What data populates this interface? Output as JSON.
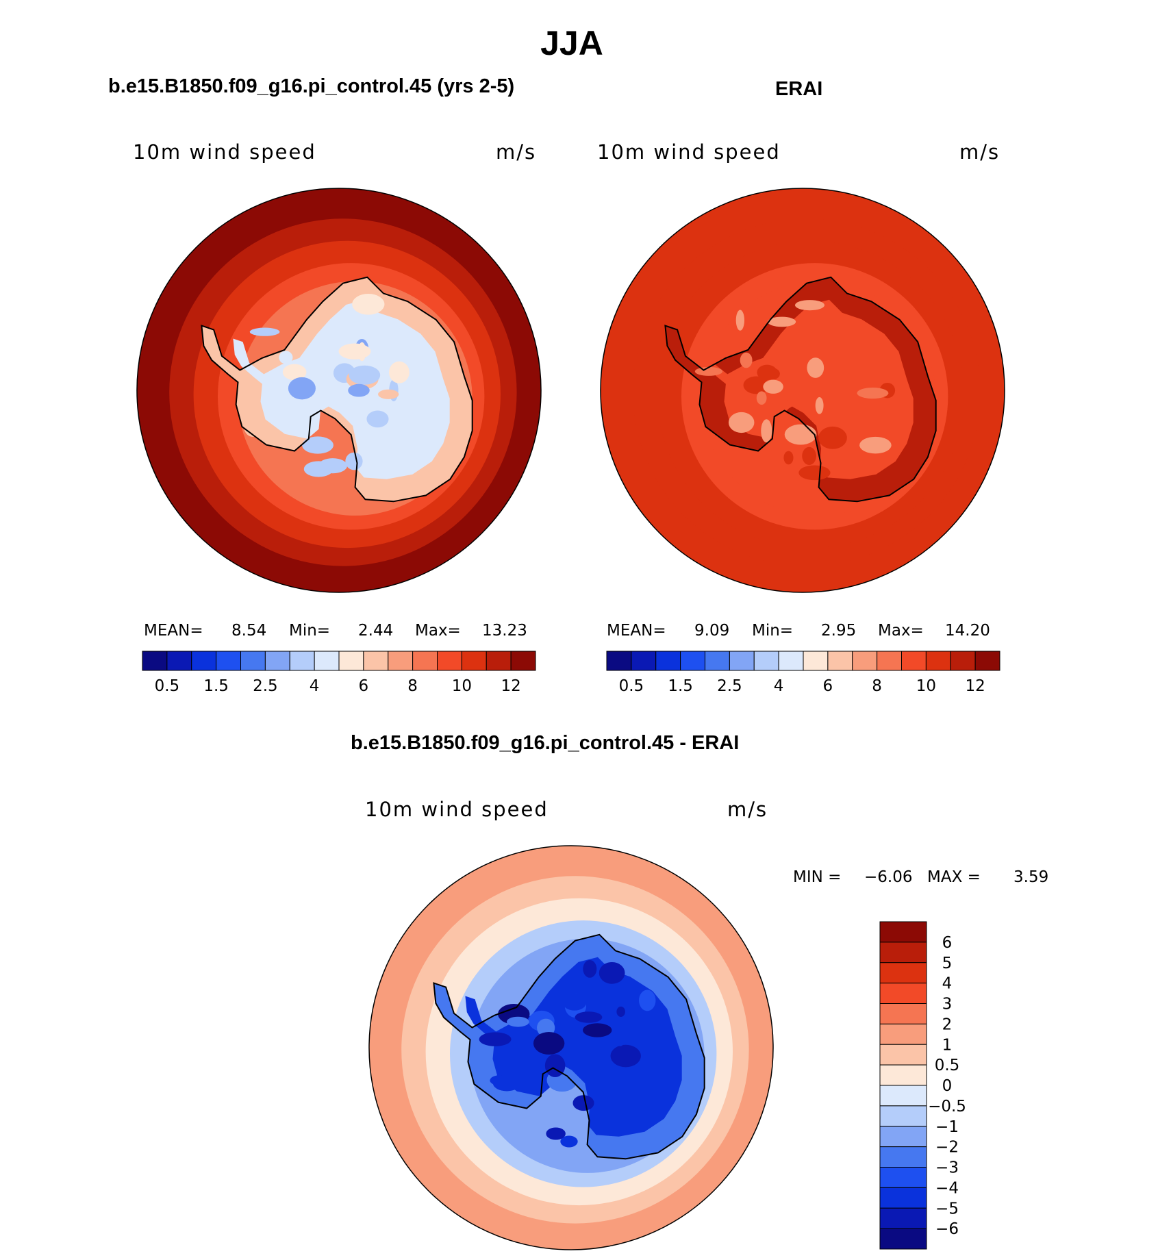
{
  "figure": {
    "title": "JJA",
    "colors": {
      "seq": [
        "#0a0a82",
        "#0a19b4",
        "#0a32dc",
        "#1e50f0",
        "#4678f0",
        "#82a5f5",
        "#b4cdfa",
        "#dce9fc",
        "#fde8d8",
        "#fbc4a8",
        "#f89d7c",
        "#f57552",
        "#f24a28",
        "#dc3210",
        "#b91e0a",
        "#8c0a05"
      ],
      "diff": [
        "#0a0a82",
        "#0a19b4",
        "#0a32dc",
        "#1e50f0",
        "#4678f0",
        "#82a5f5",
        "#b4cdfa",
        "#dce9fc",
        "#fde8d8",
        "#fbc4a8",
        "#f89d7c",
        "#f57552",
        "#f24a28",
        "#dc3210",
        "#b91e0a",
        "#8c0a05"
      ],
      "coast": "#000000"
    }
  },
  "chart_data": [
    {
      "type": "heatmap",
      "title": "b.e15.B1850.f09_g16.pi_control.45 (yrs 2-5)",
      "variable_label": "10m wind speed",
      "units_label": "m/s",
      "stats": {
        "mean_label": "MEAN=",
        "mean": "8.54",
        "min_label": "Min=",
        "min": "2.44",
        "max_label": "Max=",
        "max": "13.23"
      },
      "contour_levels": [
        0.5,
        1,
        1.5,
        2,
        2.5,
        3,
        4,
        5,
        6,
        7,
        8,
        9,
        10,
        11,
        12
      ],
      "colorbar_ticks": [
        "0.5",
        "1.5",
        "2.5",
        "4",
        "6",
        "8",
        "10",
        "12"
      ],
      "field_summary": {
        "outer_ocean": 12.5,
        "mid_ocean": 10.5,
        "coastal_ocean": 8,
        "continent_interior": 4.5,
        "continent_coast": 6.5
      }
    },
    {
      "type": "heatmap",
      "title": "ERAI",
      "variable_label": "10m wind speed",
      "units_label": "m/s",
      "stats": {
        "mean_label": "MEAN=",
        "mean": "9.09",
        "min_label": "Min=",
        "min": "2.95",
        "max_label": "Max=",
        "max": "14.20"
      },
      "contour_levels": [
        0.5,
        1,
        1.5,
        2,
        2.5,
        3,
        4,
        5,
        6,
        7,
        8,
        9,
        10,
        11,
        12
      ],
      "colorbar_ticks": [
        "0.5",
        "1.5",
        "2.5",
        "4",
        "6",
        "8",
        "10",
        "12"
      ],
      "field_summary": {
        "outer_ocean": 10.5,
        "mid_ocean": 10.5,
        "coastal_ocean": 9,
        "continent_interior": 9,
        "continent_coast": 11.5
      }
    },
    {
      "type": "heatmap",
      "title": "b.e15.B1850.f09_g16.pi_control.45 - ERAI",
      "variable_label": "10m wind speed",
      "units_label": "m/s",
      "stats": {
        "min_label": "MIN =",
        "min": "−6.06",
        "max_label": "MAX =",
        "max": "3.59"
      },
      "contour_levels": [
        -6,
        -5,
        -4,
        -3,
        -2,
        -1,
        -0.5,
        0,
        0.5,
        1,
        2,
        3,
        4,
        5,
        6
      ],
      "colorbar_ticks": [
        "6",
        "5",
        "4",
        "3",
        "2",
        "1",
        "0.5",
        "0",
        "−0.5",
        "−1",
        "−2",
        "−3",
        "−4",
        "−5",
        "−6"
      ],
      "field_summary": {
        "outer_ocean": 1.2,
        "mid_ocean": 0.3,
        "coastal_ocean": -1.5,
        "continent_interior": -4.5,
        "continent_coast": -3
      }
    }
  ]
}
